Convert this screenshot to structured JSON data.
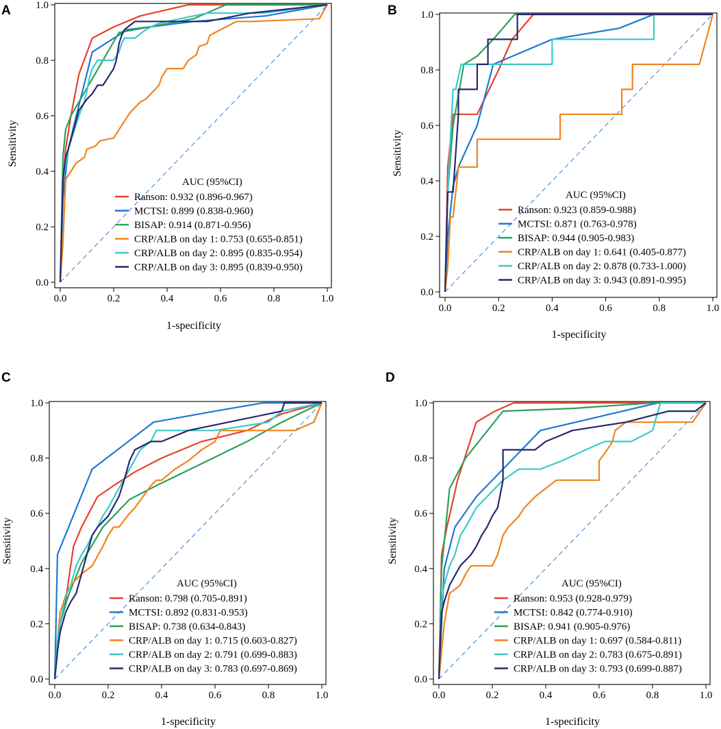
{
  "chart_data": [
    {
      "type": "line",
      "panel_label": "A",
      "xlabel": "1-specificity",
      "ylabel": "Sensitivity",
      "xlim": [
        0,
        1
      ],
      "ylim": [
        0,
        1
      ],
      "xticks": [
        "0.0",
        "0.2",
        "0.4",
        "0.6",
        "0.8",
        "1.0"
      ],
      "yticks": [
        "0.0",
        "0.2",
        "0.4",
        "0.6",
        "0.8",
        "1.0"
      ],
      "legend_title": "AUC (95%CI)",
      "reference_line": true,
      "series": [
        {
          "name": "Ranson",
          "label": "Ranson: 0.932 (0.896-0.967)",
          "color": "#e8412b",
          "x": [
            0,
            0.01,
            0.02,
            0.04,
            0.07,
            0.12,
            0.2,
            0.3,
            0.48,
            1.0
          ],
          "y": [
            0,
            0.35,
            0.48,
            0.6,
            0.75,
            0.88,
            0.92,
            0.96,
            1.0,
            1.0
          ]
        },
        {
          "name": "MCTSI",
          "label": "MCTSI: 0.899 (0.838-0.960)",
          "color": "#1f78d4",
          "x": [
            0,
            0.01,
            0.03,
            0.06,
            0.12,
            0.25,
            0.5,
            0.77,
            1.0
          ],
          "y": [
            0,
            0.3,
            0.48,
            0.6,
            0.83,
            0.91,
            0.94,
            0.96,
            1.0
          ]
        },
        {
          "name": "BISAP",
          "label": "BISAP: 0.914 (0.871-0.956)",
          "color": "#2ca05a",
          "x": [
            0,
            0.01,
            0.02,
            0.04,
            0.1,
            0.22,
            0.5,
            0.62,
            0.72,
            1.0
          ],
          "y": [
            0,
            0.45,
            0.55,
            0.6,
            0.7,
            0.9,
            0.95,
            1.0,
            1.0,
            1.0
          ]
        },
        {
          "name": "CRP/ALB on day 1",
          "label": "CRP/ALB on day 1: 0.753 (0.655-0.851)",
          "color": "#f0831e",
          "x": [
            0,
            0.01,
            0.02,
            0.04,
            0.06,
            0.09,
            0.1,
            0.13,
            0.15,
            0.2,
            0.22,
            0.24,
            0.26,
            0.3,
            0.32,
            0.35,
            0.37,
            0.38,
            0.4,
            0.46,
            0.48,
            0.51,
            0.52,
            0.55,
            0.56,
            0.6,
            0.62,
            0.66,
            0.68,
            0.72,
            0.97,
            1.0
          ],
          "y": [
            0,
            0.14,
            0.37,
            0.4,
            0.43,
            0.45,
            0.48,
            0.49,
            0.51,
            0.52,
            0.55,
            0.58,
            0.61,
            0.65,
            0.66,
            0.69,
            0.71,
            0.74,
            0.77,
            0.77,
            0.8,
            0.82,
            0.85,
            0.86,
            0.89,
            0.91,
            0.92,
            0.94,
            0.94,
            0.94,
            0.95,
            1.0
          ]
        },
        {
          "name": "CRP/ALB on day 2",
          "label": "CRP/ALB on day 2: 0.895 (0.835-0.954)",
          "color": "#3cc8c8",
          "x": [
            0,
            0.01,
            0.02,
            0.03,
            0.05,
            0.07,
            0.09,
            0.1,
            0.11,
            0.12,
            0.14,
            0.16,
            0.18,
            0.2,
            0.22,
            0.23,
            0.24,
            0.28,
            0.32,
            0.36,
            0.4,
            0.55,
            0.58,
            0.7,
            0.76,
            1.0
          ],
          "y": [
            0,
            0.37,
            0.42,
            0.48,
            0.54,
            0.6,
            0.65,
            0.69,
            0.74,
            0.77,
            0.8,
            0.8,
            0.8,
            0.8,
            0.83,
            0.86,
            0.88,
            0.88,
            0.91,
            0.93,
            0.94,
            0.97,
            0.97,
            0.97,
            0.97,
            1.0
          ]
        },
        {
          "name": "CRP/ALB on day 3",
          "label": "CRP/ALB on day 3: 0.895 (0.839-0.950)",
          "color": "#26286e",
          "x": [
            0,
            0.01,
            0.02,
            0.03,
            0.05,
            0.07,
            0.1,
            0.12,
            0.14,
            0.16,
            0.18,
            0.2,
            0.21,
            0.22,
            0.23,
            0.24,
            0.28,
            0.4,
            0.55,
            0.71,
            1.0
          ],
          "y": [
            0,
            0.37,
            0.45,
            0.48,
            0.55,
            0.62,
            0.66,
            0.68,
            0.71,
            0.71,
            0.74,
            0.77,
            0.8,
            0.86,
            0.89,
            0.91,
            0.94,
            0.94,
            0.94,
            0.97,
            1.0
          ]
        }
      ]
    },
    {
      "type": "line",
      "panel_label": "B",
      "xlabel": "1-specificity",
      "ylabel": "Sensitivity",
      "xlim": [
        0,
        1
      ],
      "ylim": [
        0,
        1
      ],
      "xticks": [
        "0.0",
        "0.2",
        "0.4",
        "0.6",
        "0.8",
        "1.0"
      ],
      "yticks": [
        "0.0",
        "0.2",
        "0.4",
        "0.6",
        "0.8",
        "1.0"
      ],
      "legend_title": "AUC (95%CI)",
      "reference_line": true,
      "series": [
        {
          "name": "Ranson",
          "label": "Ranson: 0.923 (0.859-0.988)",
          "color": "#e8412b",
          "x": [
            0,
            0.01,
            0.03,
            0.05,
            0.12,
            0.2,
            0.25,
            0.33,
            1.0
          ],
          "y": [
            0,
            0.45,
            0.64,
            0.64,
            0.64,
            0.8,
            0.91,
            1.0,
            1.0
          ]
        },
        {
          "name": "MCTSI",
          "label": "MCTSI: 0.871 (0.763-0.978)",
          "color": "#1f78d4",
          "x": [
            0,
            0.01,
            0.03,
            0.05,
            0.12,
            0.18,
            0.4,
            0.65,
            0.78,
            1.0
          ],
          "y": [
            0,
            0.2,
            0.38,
            0.45,
            0.6,
            0.82,
            0.91,
            0.95,
            1.0,
            1.0
          ]
        },
        {
          "name": "BISAP",
          "label": "BISAP: 0.944 (0.905-0.983)",
          "color": "#2ca05a",
          "x": [
            0,
            0.01,
            0.03,
            0.07,
            0.12,
            0.18,
            0.26,
            1.0
          ],
          "y": [
            0,
            0.36,
            0.6,
            0.82,
            0.85,
            0.91,
            1.0,
            1.0
          ]
        },
        {
          "name": "CRP/ALB on day 1",
          "label": "CRP/ALB on day 1: 0.641 (0.405-0.877)",
          "color": "#f0831e",
          "x": [
            0,
            0.01,
            0.02,
            0.03,
            0.04,
            0.05,
            0.12,
            0.12,
            0.43,
            0.43,
            0.66,
            0.66,
            0.67,
            0.68,
            0.7,
            0.7,
            0.95,
            1.0
          ],
          "y": [
            0,
            0.09,
            0.27,
            0.27,
            0.36,
            0.45,
            0.45,
            0.55,
            0.55,
            0.64,
            0.64,
            0.73,
            0.73,
            0.73,
            0.73,
            0.82,
            0.82,
            1.0
          ]
        },
        {
          "name": "CRP/ALB on day 2",
          "label": "CRP/ALB on day 2: 0.878 (0.733-1.000)",
          "color": "#3cc8c8",
          "x": [
            0,
            0.01,
            0.02,
            0.03,
            0.04,
            0.06,
            0.08,
            0.1,
            0.4,
            0.4,
            0.78,
            0.78,
            1.0
          ],
          "y": [
            0,
            0.36,
            0.55,
            0.73,
            0.73,
            0.82,
            0.82,
            0.82,
            0.82,
            0.91,
            0.91,
            1.0,
            1.0
          ]
        },
        {
          "name": "CRP/ALB on day 3",
          "label": "CRP/ALB on day 3: 0.943 (0.891-0.995)",
          "color": "#26286e",
          "x": [
            0,
            0.01,
            0.03,
            0.05,
            0.05,
            0.12,
            0.12,
            0.16,
            0.16,
            0.27,
            0.27,
            1.0
          ],
          "y": [
            0,
            0.36,
            0.36,
            0.64,
            0.73,
            0.73,
            0.82,
            0.82,
            0.91,
            0.91,
            1.0,
            1.0
          ]
        }
      ]
    },
    {
      "type": "line",
      "panel_label": "C",
      "xlabel": "1-specificity",
      "ylabel": "Sensitivity",
      "xlim": [
        0,
        1
      ],
      "ylim": [
        0,
        1
      ],
      "xticks": [
        "0.0",
        "0.2",
        "0.4",
        "0.6",
        "0.8",
        "1.0"
      ],
      "yticks": [
        "0.0",
        "0.2",
        "0.4",
        "0.6",
        "0.8",
        "1.0"
      ],
      "legend_title": "AUC (95%CI)",
      "reference_line": true,
      "series": [
        {
          "name": "Ranson",
          "label": "Ranson: 0.798 (0.705-0.891)",
          "color": "#e8412b",
          "x": [
            0,
            0.02,
            0.04,
            0.07,
            0.1,
            0.16,
            0.22,
            0.3,
            0.4,
            0.55,
            0.72,
            0.85,
            1.0
          ],
          "y": [
            0,
            0.2,
            0.28,
            0.48,
            0.55,
            0.66,
            0.7,
            0.75,
            0.8,
            0.86,
            0.9,
            0.96,
            1.0
          ]
        },
        {
          "name": "MCTSI",
          "label": "MCTSI: 0.892 (0.831-0.953)",
          "color": "#1f78d4",
          "x": [
            0,
            0.01,
            0.14,
            0.37,
            0.6,
            0.78,
            1.0
          ],
          "y": [
            0,
            0.45,
            0.76,
            0.93,
            0.97,
            1.0,
            1.0
          ]
        },
        {
          "name": "BISAP",
          "label": "BISAP: 0.738 (0.634-0.843)",
          "color": "#2ca05a",
          "x": [
            0,
            0.02,
            0.05,
            0.1,
            0.18,
            0.28,
            0.38,
            0.55,
            0.72,
            0.85,
            1.0
          ],
          "y": [
            0,
            0.2,
            0.3,
            0.42,
            0.55,
            0.65,
            0.7,
            0.78,
            0.86,
            0.93,
            1.0
          ]
        },
        {
          "name": "CRP/ALB on day 1",
          "label": "CRP/ALB on day 1: 0.715 (0.603-0.827)",
          "color": "#f0831e",
          "x": [
            0,
            0.01,
            0.02,
            0.04,
            0.06,
            0.1,
            0.14,
            0.18,
            0.2,
            0.22,
            0.24,
            0.28,
            0.3,
            0.33,
            0.36,
            0.38,
            0.4,
            0.45,
            0.5,
            0.55,
            0.6,
            0.62,
            0.65,
            0.7,
            0.8,
            0.9,
            0.97,
            1.0
          ],
          "y": [
            0,
            0.14,
            0.24,
            0.3,
            0.34,
            0.38,
            0.41,
            0.48,
            0.52,
            0.55,
            0.55,
            0.6,
            0.62,
            0.66,
            0.7,
            0.72,
            0.72,
            0.76,
            0.79,
            0.83,
            0.86,
            0.9,
            0.9,
            0.9,
            0.9,
            0.9,
            0.93,
            1.0
          ]
        },
        {
          "name": "CRP/ALB on day 2",
          "label": "CRP/ALB on day 2: 0.791 (0.699-0.883)",
          "color": "#3cc8c8",
          "x": [
            0,
            0.01,
            0.02,
            0.04,
            0.06,
            0.08,
            0.1,
            0.12,
            0.14,
            0.16,
            0.18,
            0.2,
            0.24,
            0.28,
            0.32,
            0.36,
            0.38,
            0.6,
            0.8,
            0.85,
            1.0
          ],
          "y": [
            0,
            0.14,
            0.2,
            0.3,
            0.34,
            0.41,
            0.45,
            0.48,
            0.52,
            0.55,
            0.59,
            0.62,
            0.69,
            0.76,
            0.83,
            0.86,
            0.9,
            0.9,
            0.93,
            0.97,
            1.0
          ]
        },
        {
          "name": "CRP/ALB on day 3",
          "label": "CRP/ALB on day 3: 0.783 (0.697-0.869)",
          "color": "#26286e",
          "x": [
            0,
            0.01,
            0.02,
            0.04,
            0.06,
            0.08,
            0.1,
            0.12,
            0.14,
            0.16,
            0.2,
            0.24,
            0.26,
            0.28,
            0.3,
            0.36,
            0.4,
            0.5,
            0.65,
            0.85,
            0.86,
            1.0
          ],
          "y": [
            0,
            0.1,
            0.17,
            0.24,
            0.28,
            0.31,
            0.38,
            0.45,
            0.52,
            0.55,
            0.59,
            0.66,
            0.72,
            0.79,
            0.83,
            0.86,
            0.86,
            0.9,
            0.93,
            0.97,
            1.0,
            1.0
          ]
        }
      ]
    },
    {
      "type": "line",
      "panel_label": "D",
      "xlabel": "1-specificity",
      "ylabel": "Sensitivity",
      "xlim": [
        0,
        1
      ],
      "ylim": [
        0,
        1
      ],
      "xticks": [
        "0.0",
        "0.2",
        "0.4",
        "0.6",
        "0.8",
        "1.0"
      ],
      "yticks": [
        "0.0",
        "0.2",
        "0.4",
        "0.6",
        "0.8",
        "1.0"
      ],
      "legend_title": "AUC (95%CI)",
      "reference_line": true,
      "series": [
        {
          "name": "Ranson",
          "label": "Ranson: 0.953 (0.928-0.979)",
          "color": "#e8412b",
          "x": [
            0,
            0.01,
            0.03,
            0.07,
            0.14,
            0.21,
            0.28,
            1.0
          ],
          "y": [
            0,
            0.45,
            0.55,
            0.72,
            0.93,
            0.97,
            1.0,
            1.0
          ]
        },
        {
          "name": "MCTSI",
          "label": "MCTSI: 0.842 (0.774-0.910)",
          "color": "#1f78d4",
          "x": [
            0,
            0.02,
            0.06,
            0.14,
            0.27,
            0.38,
            0.6,
            0.82,
            1.0
          ],
          "y": [
            0,
            0.4,
            0.55,
            0.66,
            0.79,
            0.9,
            0.95,
            1.0,
            1.0
          ]
        },
        {
          "name": "BISAP",
          "label": "BISAP: 0.941 (0.905-0.976)",
          "color": "#2ca05a",
          "x": [
            0,
            0.01,
            0.04,
            0.1,
            0.24,
            0.5,
            0.8,
            1.0
          ],
          "y": [
            0,
            0.4,
            0.69,
            0.8,
            0.97,
            0.98,
            1.0,
            1.0
          ]
        },
        {
          "name": "CRP/ALB on day 1",
          "label": "CRP/ALB on day 1: 0.697 (0.584-0.811)",
          "color": "#f0831e",
          "x": [
            0,
            0.01,
            0.02,
            0.04,
            0.08,
            0.1,
            0.12,
            0.2,
            0.22,
            0.24,
            0.26,
            0.3,
            0.32,
            0.36,
            0.4,
            0.44,
            0.47,
            0.5,
            0.52,
            0.55,
            0.6,
            0.6,
            0.63,
            0.65,
            0.66,
            0.7,
            0.95,
            1.0
          ],
          "y": [
            0,
            0.1,
            0.2,
            0.31,
            0.34,
            0.38,
            0.41,
            0.41,
            0.45,
            0.52,
            0.55,
            0.59,
            0.62,
            0.66,
            0.69,
            0.72,
            0.72,
            0.72,
            0.72,
            0.72,
            0.72,
            0.79,
            0.83,
            0.86,
            0.9,
            0.93,
            0.93,
            1.0
          ]
        },
        {
          "name": "CRP/ALB on day 2",
          "label": "CRP/ALB on day 2: 0.783 (0.675-0.891)",
          "color": "#3cc8c8",
          "x": [
            0,
            0.01,
            0.02,
            0.04,
            0.06,
            0.08,
            0.1,
            0.14,
            0.18,
            0.24,
            0.3,
            0.38,
            0.46,
            0.55,
            0.62,
            0.72,
            0.8,
            0.83,
            1.0
          ],
          "y": [
            0,
            0.28,
            0.34,
            0.41,
            0.45,
            0.52,
            0.55,
            0.62,
            0.66,
            0.72,
            0.76,
            0.76,
            0.79,
            0.83,
            0.86,
            0.86,
            0.9,
            1.0,
            1.0
          ]
        },
        {
          "name": "CRP/ALB on day 3",
          "label": "CRP/ALB on day 3: 0.793 (0.699-0.887)",
          "color": "#26286e",
          "x": [
            0,
            0.01,
            0.02,
            0.04,
            0.08,
            0.12,
            0.14,
            0.16,
            0.18,
            0.2,
            0.22,
            0.24,
            0.24,
            0.36,
            0.4,
            0.5,
            0.7,
            0.86,
            0.96,
            1.0
          ],
          "y": [
            0,
            0.24,
            0.28,
            0.34,
            0.41,
            0.45,
            0.48,
            0.52,
            0.55,
            0.59,
            0.62,
            0.72,
            0.83,
            0.83,
            0.86,
            0.9,
            0.93,
            0.97,
            0.97,
            1.0
          ]
        }
      ]
    }
  ]
}
